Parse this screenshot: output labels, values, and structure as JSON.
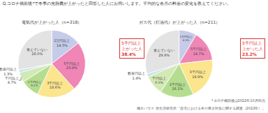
{
  "title": "Q.コロナ禍前後*で冬季の光熱費が上がったと回答した人にお伺いします。平均的な各月の料金の変化を教えてください。",
  "notes": [
    "*コロナ禍前後は2022年10月時点",
    "積水ハウス 住生活研究所「自宅における冬の寒さ対策に関する調査（2022年）」"
  ],
  "chart_data": [
    {
      "type": "pie",
      "title": "電気代が上がった人（n=318）",
      "categories": [
        "1万円以上",
        "5千円以上",
        "3千円以上",
        "2千円以上",
        "千円以上",
        "数百円以上",
        "覚えていない"
      ],
      "values": [
        14.5,
        23.9,
        18.6,
        9.1,
        4.7,
        1.3,
        28.0
      ],
      "value_labels": [
        "14.5%",
        "23.9%",
        "18.6%",
        "9.1%",
        "4.7%",
        "1.3%",
        "28.0%"
      ],
      "colors": [
        "#c5cbe9",
        "#ef86b5",
        "#fbe58d",
        "#b5dd8f",
        "#d3e9b5",
        "#bfe3f2",
        "#e3e3e3"
      ],
      "data_labels": true,
      "annotations": [
        {
          "text": [
            "5千円以上",
            "上がった人"
          ],
          "value": 38.4,
          "label": "38.4%"
        }
      ]
    },
    {
      "type": "pie",
      "title": "ガス代（灯油代）が上がった人（n=211）",
      "categories": [
        "1万円以上",
        "5千円以上",
        "3千円以上",
        "2千円以上",
        "千円以上",
        "数百円以上",
        "覚えていない"
      ],
      "values": [
        8.5,
        14.7,
        19.9,
        16.1,
        9.5,
        1.4,
        29.9
      ],
      "value_labels": [
        "8.5%",
        "14.7%",
        "19.9%",
        "16.1%",
        "9.5%",
        "1.4%",
        "29.9%"
      ],
      "colors": [
        "#c5cbe9",
        "#ef86b5",
        "#fbe58d",
        "#b5dd8f",
        "#d3e9b5",
        "#bfe3f2",
        "#e3e3e3"
      ],
      "data_labels": true,
      "annotations": [
        {
          "text": [
            "5千円以上",
            "上がった人"
          ],
          "value": 23.2,
          "label": "23.2%"
        }
      ]
    }
  ]
}
